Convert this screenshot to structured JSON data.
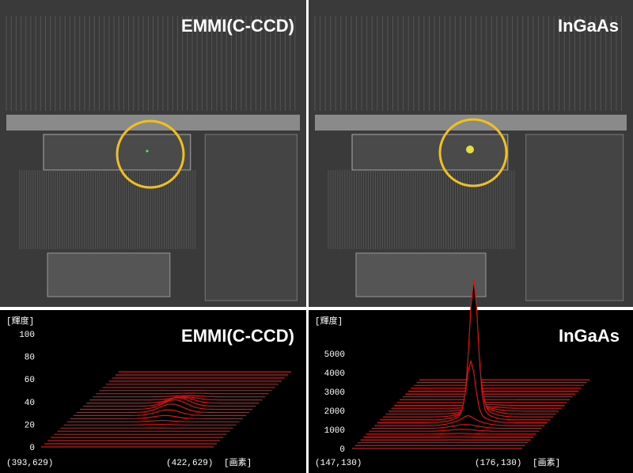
{
  "panels": [
    {
      "label": "EMMI(C-CCD)"
    },
    {
      "label": "InGaAs"
    }
  ],
  "plots": [
    {
      "label": "EMMI(C-CCD)",
      "y_axis_label": "[輝度]",
      "ylim": [
        0,
        100
      ],
      "yticks": [
        0,
        20,
        40,
        60,
        80,
        100
      ],
      "x_start": "(393,629)",
      "x_end": "(422,629)",
      "x_unit": "[画素]"
    },
    {
      "label": "InGaAs",
      "y_axis_label": "[輝度]",
      "ylim": [
        0,
        5000
      ],
      "yticks": [
        0,
        1000,
        2000,
        3000,
        4000,
        5000
      ],
      "x_start": "(147,130)",
      "x_end": "(176,130)",
      "x_unit": "[画素]"
    }
  ]
}
